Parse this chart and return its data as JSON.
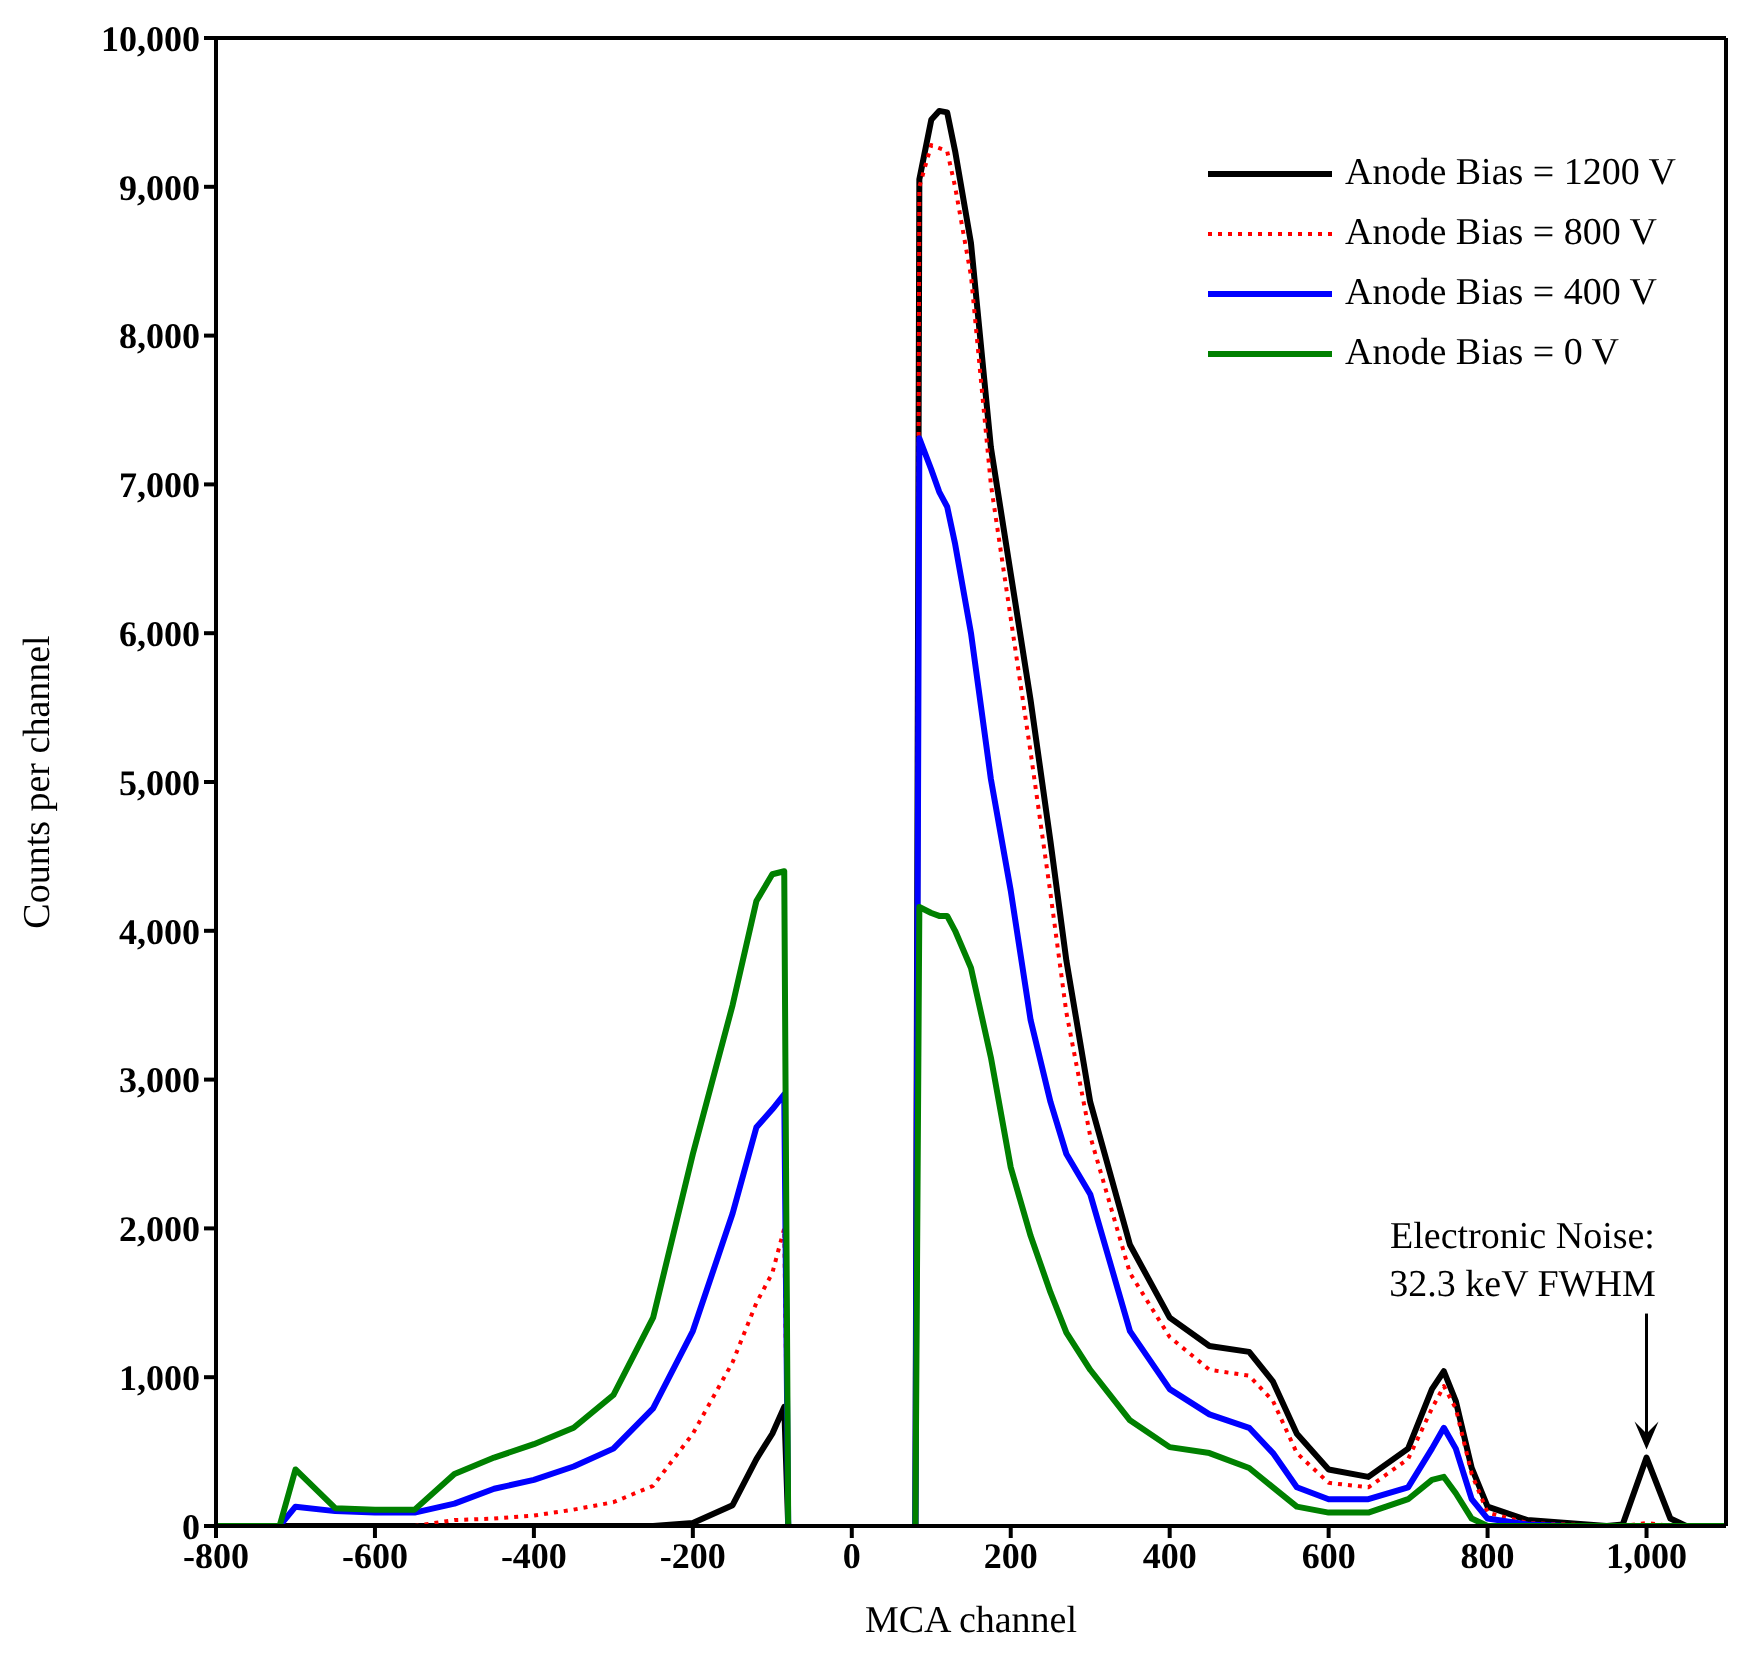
{
  "chart_data": {
    "type": "line",
    "xlabel": "MCA channel",
    "ylabel": "Counts per channel",
    "x": [
      -800,
      -720,
      -700,
      -650,
      -600,
      -550,
      -500,
      -450,
      -400,
      -350,
      -300,
      -250,
      -200,
      -150,
      -120,
      -100,
      -85,
      -80,
      0,
      80,
      85,
      100,
      110,
      120,
      130,
      150,
      175,
      200,
      225,
      250,
      270,
      300,
      350,
      400,
      450,
      500,
      530,
      560,
      600,
      650,
      700,
      730,
      745,
      760,
      780,
      800,
      850,
      900,
      950,
      970,
      1000,
      1030,
      1050,
      1100
    ],
    "series": [
      {
        "name": "Anode Bias = 1200 V",
        "color": "#000000",
        "line_style": "solid",
        "values": [
          0,
          0,
          0,
          0,
          0,
          0,
          0,
          0,
          0,
          0,
          0,
          0,
          20,
          140,
          450,
          620,
          800,
          0,
          null,
          0,
          9050,
          9450,
          9510,
          9500,
          9240,
          8620,
          7250,
          6400,
          5550,
          4600,
          3800,
          2850,
          1890,
          1400,
          1210,
          1170,
          970,
          620,
          380,
          330,
          520,
          920,
          1040,
          840,
          390,
          130,
          40,
          20,
          0,
          10,
          460,
          50,
          0,
          0
        ]
      },
      {
        "name": "Anode Bias = 800 V",
        "color": "#ff0000",
        "line_style": "dotted",
        "values": [
          null,
          null,
          null,
          null,
          null,
          0,
          40,
          50,
          70,
          110,
          160,
          270,
          620,
          1100,
          1500,
          1700,
          2000,
          0,
          null,
          0,
          9000,
          9280,
          9260,
          9240,
          9000,
          8400,
          7000,
          6100,
          5200,
          4250,
          3450,
          2620,
          1700,
          1270,
          1050,
          1010,
          840,
          490,
          290,
          260,
          450,
          790,
          940,
          790,
          350,
          90,
          20,
          10,
          0,
          0,
          20,
          0,
          0,
          0
        ]
      },
      {
        "name": "Anode Bias = 400 V",
        "color": "#0000ff",
        "line_style": "solid",
        "values": [
          0,
          0,
          130,
          100,
          90,
          90,
          150,
          250,
          310,
          400,
          520,
          790,
          1310,
          2100,
          2680,
          2800,
          2900,
          0,
          null,
          0,
          7310,
          7100,
          6950,
          6850,
          6600,
          6000,
          5020,
          4270,
          3400,
          2850,
          2500,
          2230,
          1310,
          920,
          750,
          660,
          490,
          260,
          180,
          180,
          260,
          520,
          660,
          520,
          180,
          50,
          10,
          0,
          0,
          null,
          null,
          null,
          null,
          null
        ]
      },
      {
        "name": "Anode Bias = 0 V",
        "color": "#008000",
        "line_style": "solid",
        "values": [
          0,
          0,
          380,
          120,
          110,
          110,
          350,
          460,
          550,
          660,
          880,
          1400,
          2500,
          3500,
          4200,
          4380,
          4400,
          0,
          null,
          0,
          4160,
          4120,
          4100,
          4100,
          4000,
          3750,
          3150,
          2410,
          1950,
          1570,
          1300,
          1050,
          710,
          530,
          490,
          390,
          260,
          130,
          90,
          90,
          180,
          310,
          330,
          220,
          50,
          0,
          0,
          0,
          0,
          0,
          0,
          0,
          0,
          0
        ]
      }
    ],
    "xlim": [
      -800,
      1100
    ],
    "xticks": [
      -800,
      -600,
      -400,
      -200,
      0,
      200,
      400,
      600,
      800,
      {
        "value": 1000,
        "label": "1,000"
      }
    ],
    "ylim": [
      0,
      10000
    ],
    "yticks": [
      0,
      {
        "value": 1000,
        "label": "1,000"
      },
      {
        "value": 2000,
        "label": "2,000"
      },
      {
        "value": 3000,
        "label": "3,000"
      },
      {
        "value": 4000,
        "label": "4,000"
      },
      {
        "value": 5000,
        "label": "5,000"
      },
      {
        "value": 6000,
        "label": "6,000"
      },
      {
        "value": 7000,
        "label": "7,000"
      },
      {
        "value": 8000,
        "label": "8,000"
      },
      {
        "value": 9000,
        "label": "9,000"
      },
      {
        "value": 10000,
        "label": "10,000"
      }
    ],
    "legend": "top right",
    "grid": false,
    "marker": "none",
    "annotations": [
      {
        "text": "Electronic Noise:\n32.3 keV FWHM",
        "x": 1000,
        "y": 460
      }
    ]
  }
}
